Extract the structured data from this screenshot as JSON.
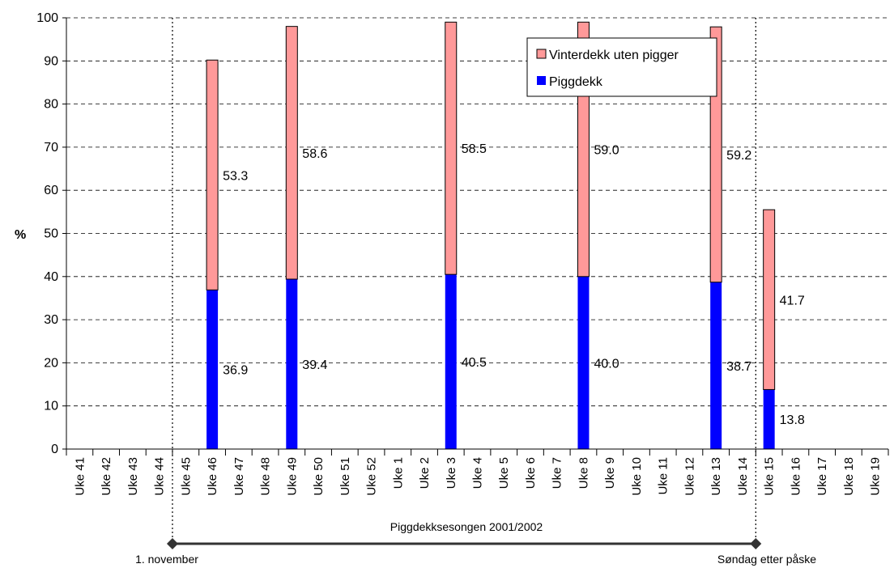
{
  "chart_data": {
    "type": "bar",
    "stacked": true,
    "title": "",
    "xlabel": "",
    "ylabel": "%",
    "ylim": [
      0,
      100
    ],
    "ytick_step": 10,
    "grid": "horizontal-dashed",
    "legend_position": "top-right",
    "categories": [
      "Uke 41",
      "Uke 42",
      "Uke 43",
      "Uke 44",
      "Uke 45",
      "Uke 46",
      "Uke 47",
      "Uke 48",
      "Uke 49",
      "Uke 50",
      "Uke 51",
      "Uke 52",
      "Uke 1",
      "Uke 2",
      "Uke 3",
      "Uke 4",
      "Uke 5",
      "Uke 6",
      "Uke 7",
      "Uke 8",
      "Uke 9",
      "Uke 10",
      "Uke 11",
      "Uke 12",
      "Uke 13",
      "Uke 14",
      "Uke 15",
      "Uke 16",
      "Uke 17",
      "Uke 18",
      "Uke 19"
    ],
    "series": [
      {
        "name": "Piggdekk",
        "color": "#0000FF",
        "values": [
          null,
          null,
          null,
          null,
          null,
          36.9,
          null,
          null,
          39.4,
          null,
          null,
          null,
          null,
          null,
          40.5,
          null,
          null,
          null,
          null,
          40.0,
          null,
          null,
          null,
          null,
          38.7,
          null,
          13.8,
          null,
          null,
          null,
          null
        ]
      },
      {
        "name": "Vinterdekk uten pigger",
        "color": "#FF9999",
        "values": [
          null,
          null,
          null,
          null,
          null,
          53.3,
          null,
          null,
          58.6,
          null,
          null,
          null,
          null,
          null,
          58.5,
          null,
          null,
          null,
          null,
          59.0,
          null,
          null,
          null,
          null,
          59.2,
          null,
          41.7,
          null,
          null,
          null,
          null
        ]
      }
    ],
    "season": {
      "label": "Piggdekksesongen 2001/2002",
      "start_after": "Uke 44",
      "end_after": "Uke 14",
      "start_label": "1. november",
      "end_label": "Søndag etter påske"
    }
  },
  "colors": {
    "piggdekk": "#0000FF",
    "vinterdekk": "#FF9999",
    "grid": "#000000"
  }
}
